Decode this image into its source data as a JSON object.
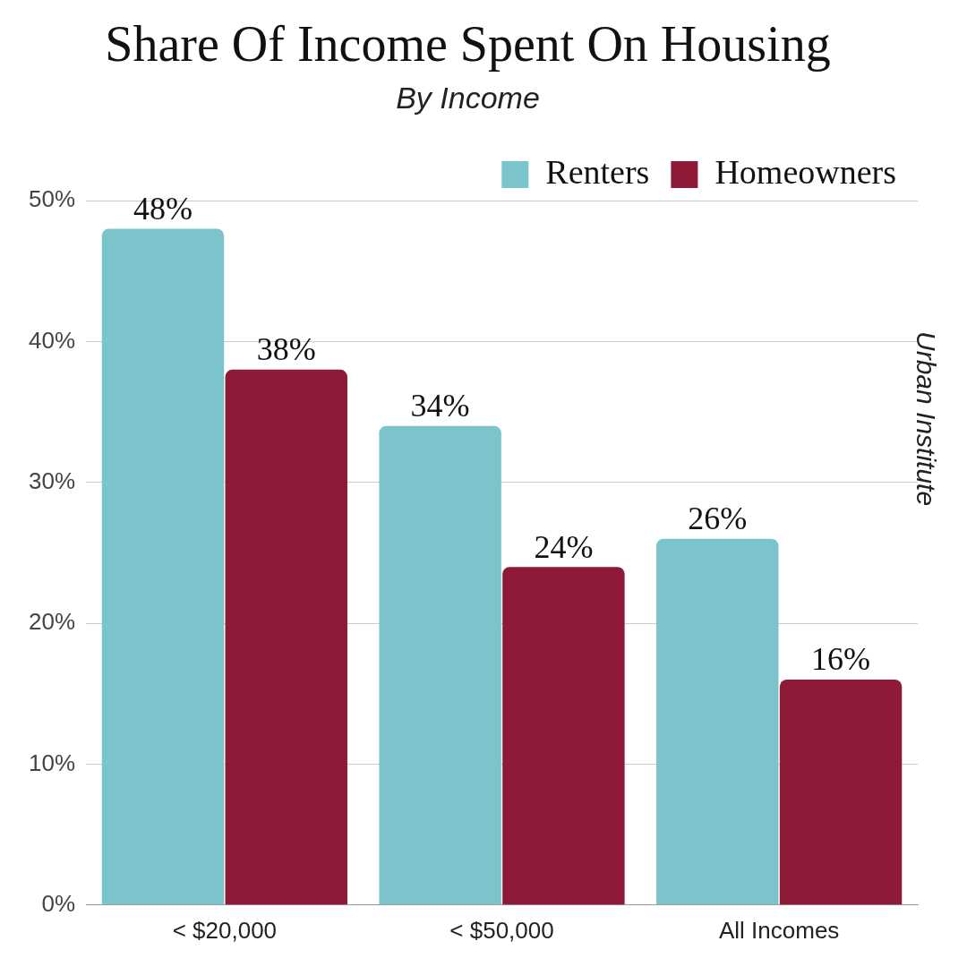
{
  "chart_data": {
    "type": "bar",
    "title": "Share Of Income Spent On Housing",
    "subtitle": "By Income",
    "categories": [
      "< $20,000",
      "< $50,000",
      "All Incomes"
    ],
    "series": [
      {
        "name": "Renters",
        "color": "#7bc4cc",
        "values": [
          48,
          34,
          26
        ],
        "value_labels": [
          "48%",
          "34%",
          "26%"
        ]
      },
      {
        "name": "Homeowners",
        "color": "#8e1a38",
        "values": [
          38,
          24,
          16
        ],
        "value_labels": [
          "38%",
          "24%",
          "16%"
        ]
      }
    ],
    "ylim": [
      0,
      50
    ],
    "yticks": [
      {
        "value": 0,
        "label": "0%"
      },
      {
        "value": 10,
        "label": "10%"
      },
      {
        "value": 20,
        "label": "20%"
      },
      {
        "value": 30,
        "label": "30%"
      },
      {
        "value": 40,
        "label": "40%"
      },
      {
        "value": 50,
        "label": "50%"
      }
    ],
    "grid": "y",
    "legend": "top right",
    "annotations": [
      "Urban Institute"
    ]
  }
}
